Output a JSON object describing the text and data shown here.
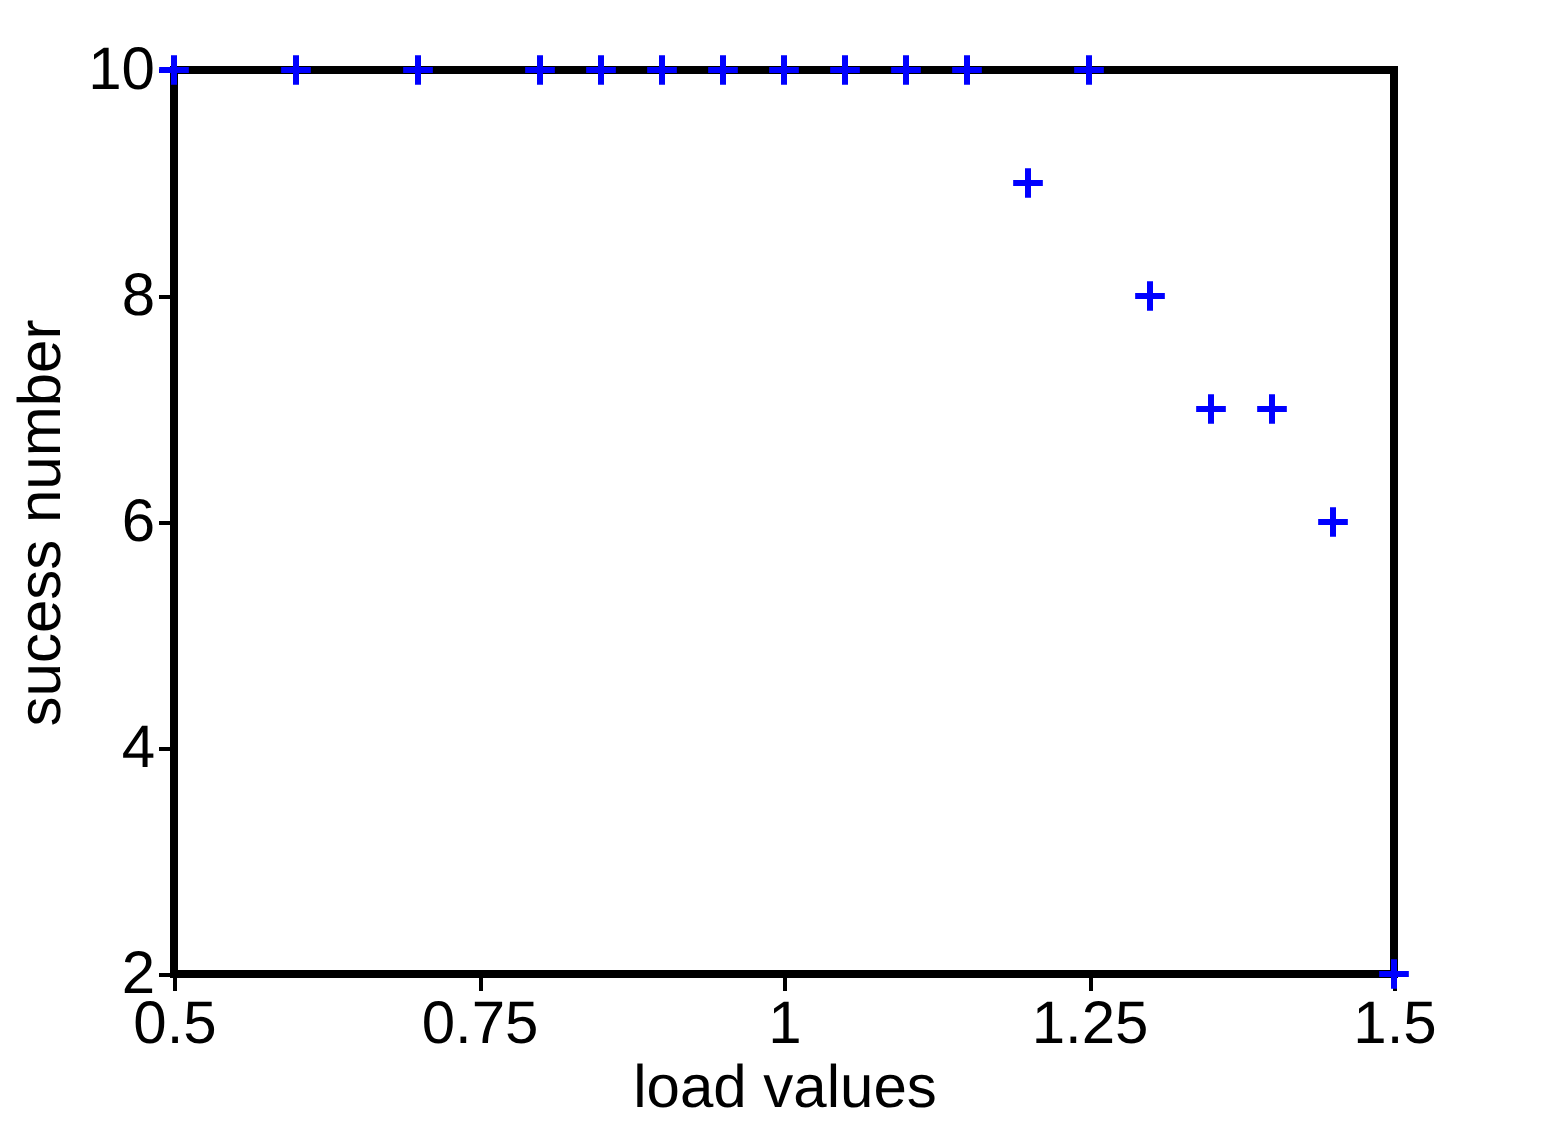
{
  "chart_data": {
    "type": "scatter",
    "xlabel": "load values",
    "ylabel": "sucess number",
    "x": [
      0.5,
      0.6,
      0.7,
      0.8,
      0.85,
      0.9,
      0.95,
      1.0,
      1.05,
      1.1,
      1.15,
      1.2,
      1.25,
      1.3,
      1.35,
      1.4,
      1.45,
      1.5
    ],
    "series": [
      {
        "color": "#0000ff",
        "values": [
          10,
          10,
          10,
          10,
          10,
          10,
          10,
          10,
          10,
          10,
          10,
          9,
          10,
          8,
          7,
          7,
          6,
          2
        ]
      }
    ],
    "xlim": [
      0.5,
      1.5
    ],
    "xticks": [
      0.5,
      0.75,
      1,
      1.25,
      1.5
    ],
    "ylim": [
      2,
      10
    ],
    "yticks": [
      2,
      4,
      6,
      8,
      10
    ],
    "grid": false,
    "marker": "cross"
  }
}
